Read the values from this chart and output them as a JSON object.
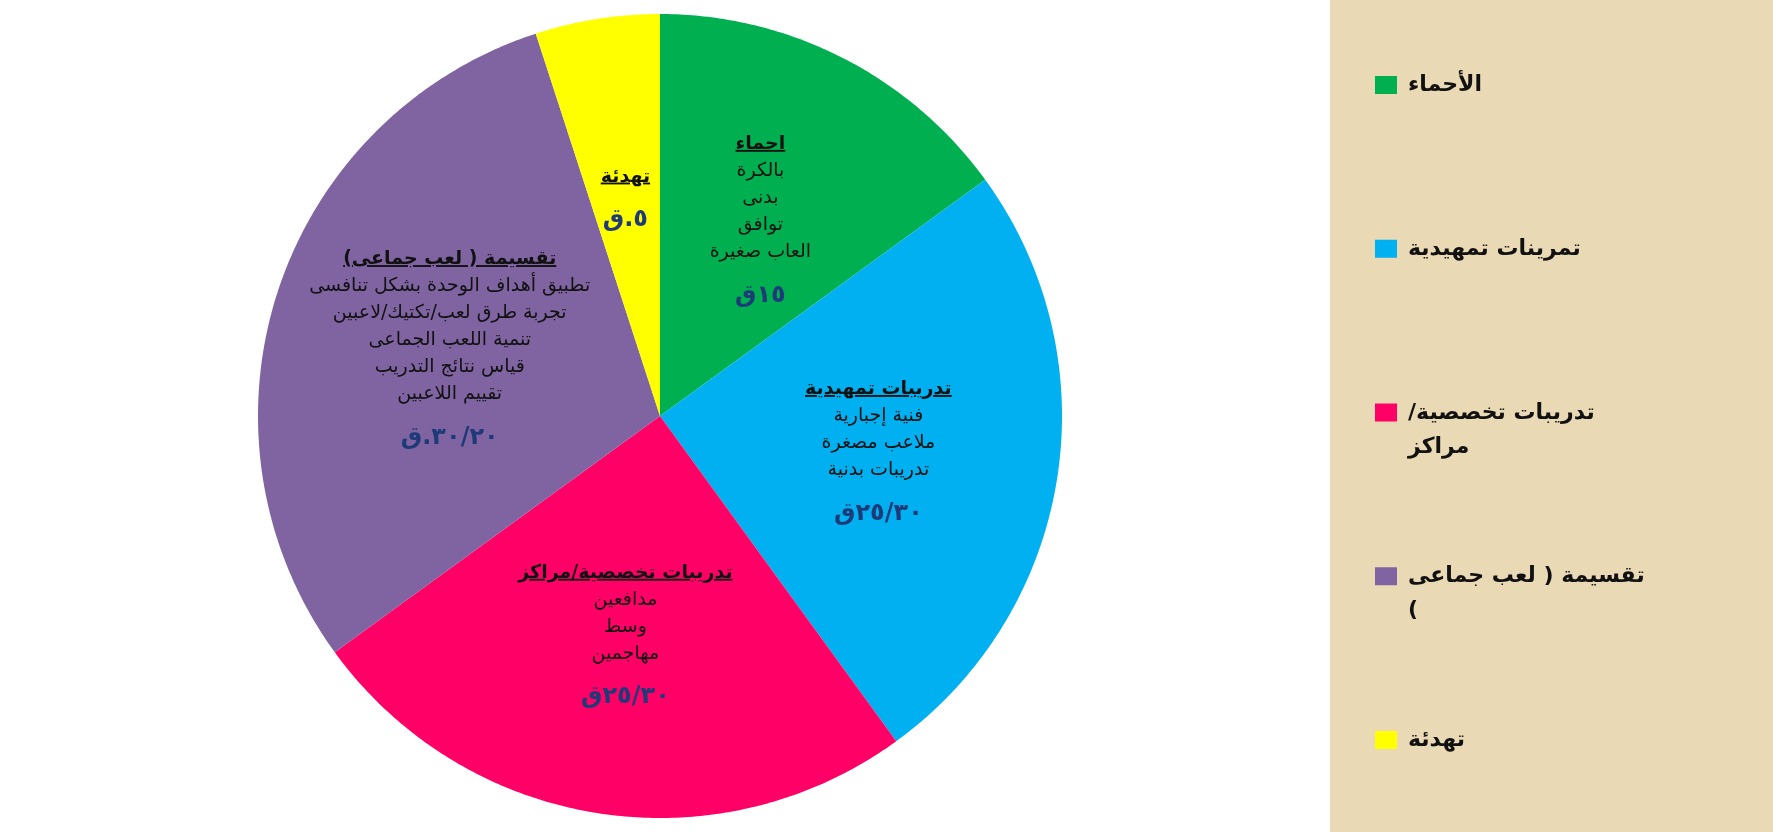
{
  "chart_data": {
    "type": "pie",
    "categories": [
      "الأحماء",
      "تمرينات تمهيدية",
      "تدريبات تخصصية/ مراكز",
      "تقسيمة ( لعب جماعى )",
      "تهدئة"
    ],
    "values": [
      15,
      25,
      25,
      30,
      5
    ],
    "colors": [
      "#00b050",
      "#00b0f0",
      "#ff0066",
      "#8064a2",
      "#ffff00"
    ],
    "value_labels": [
      "١٥ق",
      "٢٥/٣٠ق",
      "٢٥/٣٠ق",
      "٣٠/٢٠.ق",
      "٥.ق"
    ],
    "annotations": [
      "احماء\nبالكرة\nبدنى\nتوافق\nالعاب صغيرة",
      "تدريبات تمهيدية\nفنية إجبارية\nملاعب مصغرة\nتدريبات بدنية",
      "تدريبات تخصصية/مراكز\nمدافعين\nوسط\nمهاجمين",
      "تقسيمة ( لعب جماعى)\nتطبيق أهداف الوحدة بشكل تنافسى\nتجربة طرق لعب/تكتيك/لاعبين\nتنمية اللعب الجماعى\nقياس نتائج التدريب\nتقييم اللاعبين",
      "تهدئة"
    ],
    "legend": "right"
  }
}
